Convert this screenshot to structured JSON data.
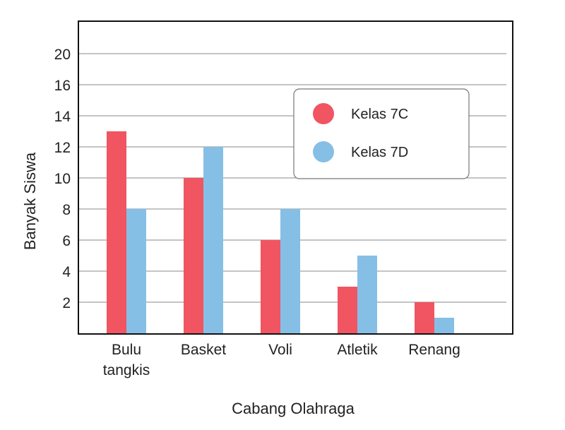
{
  "chart_data": {
    "type": "bar",
    "title": "",
    "xlabel": "Cabang Olahraga",
    "ylabel": "Banyak Siswa",
    "categories": [
      [
        "Bulu",
        "tangkis"
      ],
      [
        "Basket"
      ],
      [
        "Voli"
      ],
      [
        "Atletik"
      ],
      [
        "Renang"
      ]
    ],
    "series": [
      {
        "name": "Kelas 7C",
        "color": "#f05561",
        "values": [
          13,
          10,
          6,
          3,
          2
        ]
      },
      {
        "name": "Kelas 7D",
        "color": "#86bfe6",
        "values": [
          8,
          12,
          8,
          5,
          1
        ]
      }
    ],
    "yticks": [
      {
        "value": 2,
        "label": "2"
      },
      {
        "value": 4,
        "label": "4"
      },
      {
        "value": 6,
        "label": "6"
      },
      {
        "value": 8,
        "label": "8"
      },
      {
        "value": 10,
        "label": "10"
      },
      {
        "value": 12,
        "label": "12"
      },
      {
        "value": 14,
        "label": "14"
      },
      {
        "value": 16,
        "label": "16"
      },
      {
        "value": 20,
        "label": "20"
      }
    ],
    "ylim": [
      0,
      20
    ],
    "grid": true,
    "legend_position": "top-right"
  }
}
